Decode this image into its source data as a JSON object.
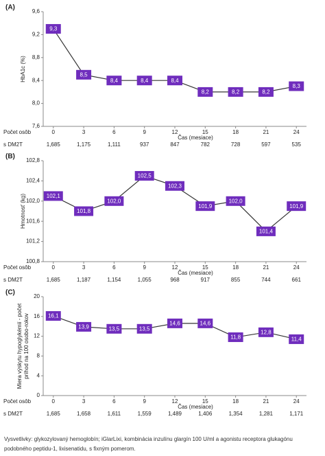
{
  "chart_data": [
    {
      "type": "line",
      "label": "(A)",
      "ylabel": [
        "HbA1c (%)"
      ],
      "xlabel": "Čas (mesiace)",
      "x": [
        0,
        3,
        6,
        9,
        12,
        15,
        18,
        21,
        24
      ],
      "xlim": [
        -1,
        25
      ],
      "xticks": [
        0,
        3,
        6,
        9,
        12,
        15,
        18,
        21,
        24
      ],
      "ylim": [
        7.6,
        9.6
      ],
      "yticks": [
        {
          "value": 7.6,
          "label": "7,6"
        },
        {
          "value": 8.0,
          "label": "8,0"
        },
        {
          "value": 8.4,
          "label": "8,4"
        },
        {
          "value": 8.8,
          "label": "8,8"
        },
        {
          "value": 9.2,
          "label": "9,2"
        },
        {
          "value": 9.6,
          "label": "9,6"
        }
      ],
      "line_color": "#333333",
      "series": [
        {
          "color": "#6f2dbd",
          "values": [
            9.3,
            8.5,
            8.4,
            8.4,
            8.4,
            8.2,
            8.2,
            8.2,
            8.3
          ],
          "value_labels": [
            "9,3",
            "8,5",
            "8,4",
            "8,4",
            "8,4",
            "8,2",
            "8,2",
            "8,2",
            "8,3"
          ]
        }
      ],
      "table": {
        "label": [
          "Počet osôb",
          "s DM2T"
        ],
        "counts": [
          "1,685",
          "1,175",
          "1,111",
          "937",
          "847",
          "782",
          "728",
          "597",
          "535"
        ]
      }
    },
    {
      "type": "line",
      "label": "(B)",
      "ylabel": [
        "Hmotnosť (kg)"
      ],
      "xlabel": "Čas (mesiace)",
      "x": [
        0,
        3,
        6,
        9,
        12,
        15,
        18,
        21,
        24
      ],
      "xlim": [
        -1,
        25
      ],
      "xticks": [
        0,
        3,
        6,
        9,
        12,
        15,
        18,
        21,
        24
      ],
      "ylim": [
        100.8,
        102.8
      ],
      "yticks": [
        {
          "value": 100.8,
          "label": "100,8"
        },
        {
          "value": 101.2,
          "label": "101,2"
        },
        {
          "value": 101.6,
          "label": "101,6"
        },
        {
          "value": 102.0,
          "label": "102,0"
        },
        {
          "value": 102.4,
          "label": "102,4"
        },
        {
          "value": 102.8,
          "label": "102,8"
        }
      ],
      "line_color": "#333333",
      "series": [
        {
          "color": "#6f2dbd",
          "values": [
            102.1,
            101.8,
            102.0,
            102.5,
            102.3,
            101.9,
            102.0,
            101.4,
            101.9
          ],
          "value_labels": [
            "102,1",
            "101,8",
            "102,0",
            "102,5",
            "102,3",
            "101,9",
            "102,0",
            "101,4",
            "101,9"
          ]
        }
      ],
      "table": {
        "label": [
          "Počet osôb",
          "s DM2T"
        ],
        "counts": [
          "1,685",
          "1,187",
          "1,154",
          "1,055",
          "968",
          "917",
          "855",
          "744",
          "661"
        ]
      }
    },
    {
      "type": "line",
      "label": "(C)",
      "ylabel": [
        "Miera výskytu hypoglykémií - počet",
        "príhod na 100 osobo-rokov"
      ],
      "xlabel": "Čas (mesiace)",
      "x": [
        0,
        3,
        6,
        9,
        12,
        15,
        18,
        21,
        24
      ],
      "xlim": [
        -1,
        25
      ],
      "xticks": [
        0,
        3,
        6,
        9,
        12,
        15,
        18,
        21,
        24
      ],
      "ylim": [
        0,
        20
      ],
      "yticks": [
        0,
        4,
        8,
        12,
        16,
        20
      ],
      "line_color": "#333333",
      "series": [
        {
          "color": "#6f2dbd",
          "values": [
            16.1,
            13.9,
            13.5,
            13.5,
            14.6,
            14.6,
            11.8,
            12.8,
            11.4
          ],
          "value_labels": [
            "16,1",
            "13,9",
            "13,5",
            "13,5",
            "14,6",
            "14,6",
            "11,8",
            "12,8",
            "11,4"
          ]
        }
      ],
      "table": {
        "label": [
          "Počet osôb",
          "s DM2T"
        ],
        "counts": [
          "1,685",
          "1,658",
          "1,611",
          "1,559",
          "1,489",
          "1,406",
          "1,354",
          "1,281",
          "1,171"
        ]
      }
    }
  ],
  "footnote": "Vysvetlivky: glykozylovaný hemoglobín; iGlarLixi, kombinácia inzulínu glargín 100 U/ml a agonistu receptora glukagónu podobného peptidu-1, lixisenatidu, s fixným pomerom."
}
